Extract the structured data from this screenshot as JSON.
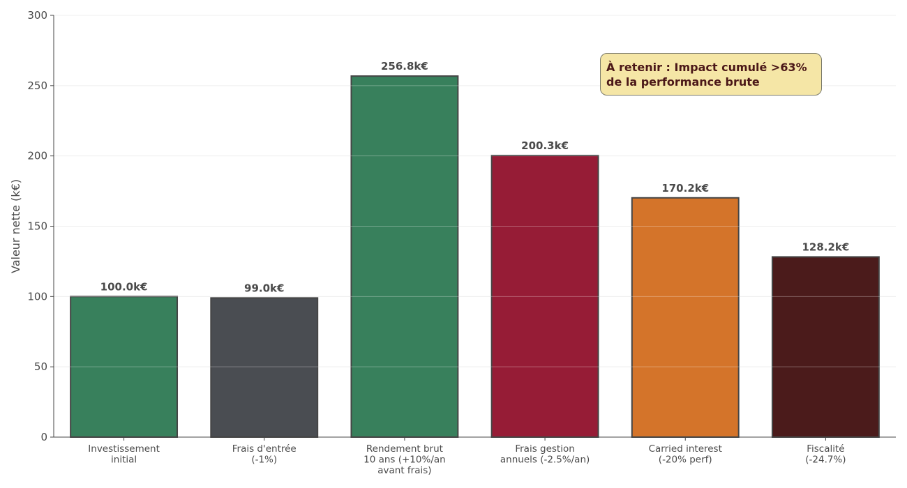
{
  "chart_data": {
    "type": "bar",
    "title": "",
    "xlabel": "",
    "ylabel": "Valeur nette (k€)",
    "ylim": [
      0,
      300
    ],
    "yticks": [
      0,
      50,
      100,
      150,
      200,
      250,
      300
    ],
    "grid": true,
    "categories": [
      [
        "Investissement",
        "initial"
      ],
      [
        "Frais d'entrée",
        "(-1%)"
      ],
      [
        "Rendement brut",
        "10 ans (+10%/an",
        "avant frais)"
      ],
      [
        "Frais gestion",
        "annuels (-2.5%/an)"
      ],
      [
        "Carried interest",
        "(-20% perf)"
      ],
      [
        "Fiscalité",
        "(-24.7%)"
      ]
    ],
    "values": [
      100.0,
      99.0,
      256.8,
      200.3,
      170.2,
      128.2
    ],
    "value_labels": [
      "100.0k€",
      "99.0k€",
      "256.8k€",
      "200.3k€",
      "170.2k€",
      "128.2k€"
    ],
    "colors": [
      "#38805c",
      "#4a4d52",
      "#38805c",
      "#961c36",
      "#d4742a",
      "#4b1b1b"
    ],
    "annotation": {
      "lines": [
        "À retenir : Impact cumulé >63%",
        "de la performance brute"
      ],
      "placement": "top-right"
    }
  }
}
